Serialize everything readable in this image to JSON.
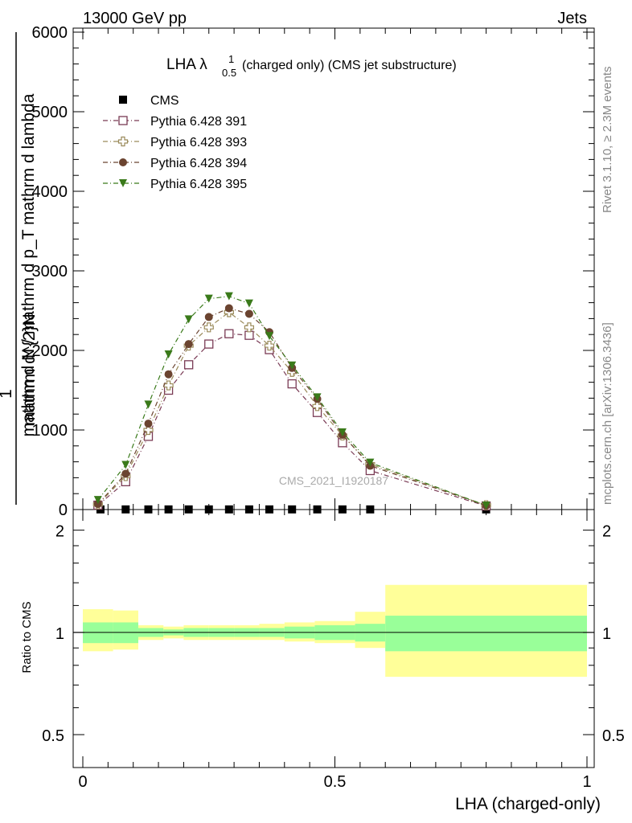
{
  "header": {
    "left": "13000 GeV pp",
    "right": "Jets"
  },
  "side": {
    "rivet": "Rivet 3.1.10, ≥ 2.3M events",
    "mcplots": "mcplots.cern.ch [arXiv:1306.3436]"
  },
  "watermark": "CMS_2021_I1920187",
  "chart_data": [
    {
      "type": "line",
      "title_main": "LHA λ",
      "title_sup": "1",
      "title_sub": "0.5",
      "title_rest": "(charged only) (CMS jet substructure)",
      "ylabel": {
        "prefix": "1",
        "num": "mathrm d N / mathrm d p",
        "num_sub": "T",
        "num_tail": " mathrm d",
        "den": "mathrm d^2N",
        "den2": "mathrm d N / mathrm d p_T mathrm d lambda"
      },
      "ylabel_upper": "mathrm d^{2}N",
      "ylabel_lower": "mathrm d N / mathrm d p_T mathrm d lambda",
      "xlim": [
        0,
        1
      ],
      "ylim": [
        0,
        6000
      ],
      "yticks": [
        "0",
        "1000",
        "2000",
        "3000",
        "4000",
        "5000",
        "6000"
      ],
      "legend_position": "top-left",
      "series": [
        {
          "name": "CMS",
          "color": "#000000",
          "marker": "square-filled",
          "x": [
            0.035,
            0.085,
            0.13,
            0.17,
            0.21,
            0.25,
            0.29,
            0.33,
            0.37,
            0.415,
            0.465,
            0.515,
            0.57,
            0.8
          ],
          "y": [
            2,
            2,
            2,
            2,
            2,
            2,
            2,
            2,
            2,
            2,
            2,
            2,
            2,
            2
          ]
        },
        {
          "name": "Pythia 6.428 391",
          "color": "#7a3b55",
          "marker": "square-open",
          "x": [
            0.03,
            0.085,
            0.13,
            0.17,
            0.21,
            0.25,
            0.29,
            0.33,
            0.37,
            0.415,
            0.465,
            0.515,
            0.57,
            0.8
          ],
          "y": [
            55,
            350,
            920,
            1500,
            1820,
            2080,
            2210,
            2190,
            2010,
            1580,
            1220,
            840,
            490,
            45
          ]
        },
        {
          "name": "Pythia 6.428 393",
          "color": "#9a8a5a",
          "marker": "cross-open",
          "x": [
            0.03,
            0.085,
            0.13,
            0.17,
            0.21,
            0.25,
            0.29,
            0.33,
            0.37,
            0.415,
            0.465,
            0.515,
            0.57,
            0.8
          ],
          "y": [
            65,
            420,
            1000,
            1560,
            2060,
            2290,
            2480,
            2290,
            2060,
            1730,
            1300,
            930,
            570,
            55
          ]
        },
        {
          "name": "Pythia 6.428 394",
          "color": "#6b4430",
          "marker": "circle-filled",
          "x": [
            0.03,
            0.085,
            0.13,
            0.17,
            0.21,
            0.25,
            0.29,
            0.33,
            0.37,
            0.415,
            0.465,
            0.515,
            0.57,
            0.8
          ],
          "y": [
            70,
            450,
            1080,
            1700,
            2080,
            2420,
            2530,
            2460,
            2230,
            1780,
            1390,
            940,
            550,
            50
          ]
        },
        {
          "name": "Pythia 6.428 395",
          "color": "#3a7a1a",
          "marker": "triangle-down-filled",
          "x": [
            0.03,
            0.085,
            0.13,
            0.17,
            0.21,
            0.25,
            0.29,
            0.33,
            0.37,
            0.415,
            0.465,
            0.515,
            0.57,
            0.8
          ],
          "y": [
            120,
            560,
            1320,
            1950,
            2390,
            2650,
            2680,
            2590,
            2180,
            1810,
            1410,
            970,
            590,
            50
          ]
        }
      ]
    },
    {
      "type": "area",
      "ylabel": "Ratio to CMS",
      "xlabel": "LHA (charged-only)",
      "xlim": [
        0,
        1
      ],
      "ylim": [
        0.4,
        2.3
      ],
      "log_y": true,
      "yticks": [
        "0.5",
        "1",
        "2"
      ],
      "xticks": [
        "0",
        "0.5",
        "1"
      ],
      "reference_line": 1,
      "bins": [
        0,
        0.06,
        0.11,
        0.16,
        0.2,
        0.25,
        0.3,
        0.35,
        0.4,
        0.46,
        0.54,
        0.6,
        1.0
      ],
      "inner_band": {
        "color": "#99ff99",
        "lo": [
          0.93,
          0.93,
          0.97,
          0.98,
          0.97,
          0.97,
          0.97,
          0.97,
          0.96,
          0.95,
          0.94,
          0.88
        ],
        "hi": [
          1.07,
          1.07,
          1.03,
          1.02,
          1.03,
          1.03,
          1.03,
          1.03,
          1.04,
          1.05,
          1.06,
          1.12
        ]
      },
      "outer_band": {
        "color": "#ffff99",
        "lo": [
          0.88,
          0.89,
          0.95,
          0.96,
          0.95,
          0.95,
          0.95,
          0.95,
          0.94,
          0.93,
          0.9,
          0.74
        ],
        "hi": [
          1.17,
          1.16,
          1.05,
          1.04,
          1.05,
          1.05,
          1.05,
          1.06,
          1.07,
          1.08,
          1.15,
          1.38
        ]
      }
    }
  ]
}
